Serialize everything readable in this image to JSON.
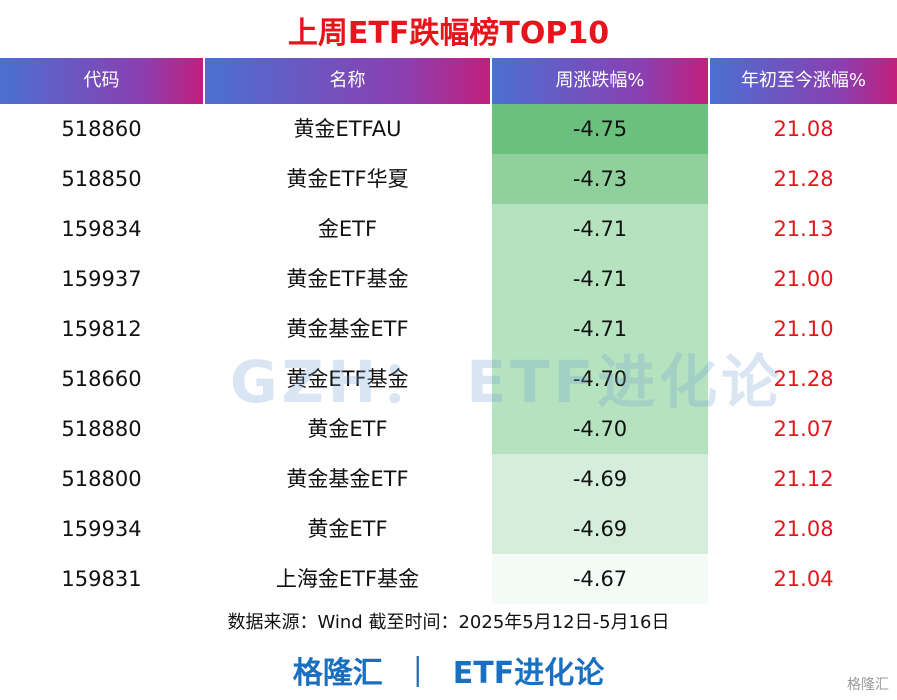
{
  "header": {
    "title": "上周ETF跌幅榜TOP10"
  },
  "table": {
    "columns": [
      "代码",
      "名称",
      "周涨跌幅%",
      "年初至今涨幅%"
    ],
    "rows": [
      [
        "518860",
        "黄金ETFAU",
        "-4.75",
        "21.08"
      ],
      [
        "518850",
        "黄金ETF华夏",
        "-4.73",
        "21.28"
      ],
      [
        "159834",
        "金ETF",
        "-4.71",
        "21.13"
      ],
      [
        "159937",
        "黄金ETF基金",
        "-4.71",
        "21.00"
      ],
      [
        "159812",
        "黄金基金ETF",
        "-4.71",
        "21.10"
      ],
      [
        "518660",
        "黄金ETF基金",
        "-4.70",
        "21.28"
      ],
      [
        "518880",
        "黄金ETF",
        "-4.70",
        "21.07"
      ],
      [
        "518800",
        "黄金基金ETF",
        "-4.69",
        "21.12"
      ],
      [
        "159934",
        "黄金ETF",
        "-4.69",
        "21.08"
      ],
      [
        "159831",
        "上海金ETF基金",
        "-4.67",
        "21.04"
      ]
    ]
  },
  "source": "数据来源：Wind 截至时间：2025年5月12日-5月16日",
  "footer": {
    "brand": "格隆汇",
    "separator": "｜",
    "account": "ETF进化论"
  },
  "watermark": "GZH： ETF进化论",
  "logo": "格隆汇"
}
